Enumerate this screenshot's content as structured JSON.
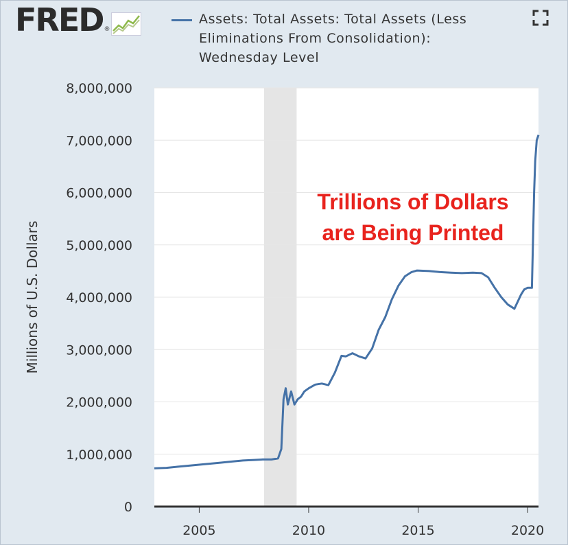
{
  "header": {
    "logo_text": "FRED",
    "logo_reg": "®",
    "series_title": "Assets: Total Assets: Total Assets (Less Eliminations From Consolidation): Wednesday Level",
    "series_color": "#4572a7"
  },
  "annotation": {
    "line1": "Trillions of Dollars",
    "line2": "are Being Printed",
    "color": "#e8231d"
  },
  "chart_data": {
    "type": "line",
    "title": "Assets: Total Assets: Total Assets (Less Eliminations From Consolidation): Wednesday Level",
    "ylabel": "Millions of U.S. Dollars",
    "xlabel": "",
    "xlim": [
      2002.95,
      2020.5
    ],
    "ylim": [
      0,
      8000000
    ],
    "yticks": [
      0,
      1000000,
      2000000,
      3000000,
      4000000,
      5000000,
      6000000,
      7000000,
      8000000
    ],
    "ytick_labels": [
      "0",
      "1,000,000",
      "2,000,000",
      "3,000,000",
      "4,000,000",
      "5,000,000",
      "6,000,000",
      "7,000,000",
      "8,000,000"
    ],
    "xticks": [
      2005,
      2010,
      2015,
      2020
    ],
    "xtick_labels": [
      "2005",
      "2010",
      "2015",
      "2020"
    ],
    "grid": true,
    "recession_shading": [
      [
        2007.96,
        2009.45
      ]
    ],
    "series": [
      {
        "name": "Assets: Total Assets: Total Assets (Less Eliminations From Consolidation): Wednesday Level",
        "color": "#4572a7",
        "x": [
          2002.95,
          2003.5,
          2004.0,
          2004.5,
          2005.0,
          2005.5,
          2006.0,
          2006.5,
          2007.0,
          2007.5,
          2007.9,
          2008.3,
          2008.6,
          2008.75,
          2008.85,
          2008.95,
          2009.05,
          2009.2,
          2009.35,
          2009.5,
          2009.65,
          2009.8,
          2010.0,
          2010.3,
          2010.6,
          2010.9,
          2011.2,
          2011.5,
          2011.7,
          2012.0,
          2012.3,
          2012.6,
          2012.9,
          2013.2,
          2013.5,
          2013.8,
          2014.1,
          2014.4,
          2014.7,
          2014.95,
          2015.5,
          2016.0,
          2016.5,
          2017.0,
          2017.5,
          2017.9,
          2018.2,
          2018.5,
          2018.8,
          2019.1,
          2019.4,
          2019.7,
          2019.85,
          2020.0,
          2020.2,
          2020.3,
          2020.35,
          2020.42,
          2020.5
        ],
        "values": [
          730000,
          740000,
          760000,
          780000,
          800000,
          820000,
          840000,
          860000,
          880000,
          890000,
          900000,
          900000,
          920000,
          1100000,
          2050000,
          2260000,
          1950000,
          2200000,
          1950000,
          2050000,
          2100000,
          2200000,
          2260000,
          2330000,
          2350000,
          2320000,
          2560000,
          2880000,
          2870000,
          2930000,
          2870000,
          2830000,
          3020000,
          3380000,
          3620000,
          3960000,
          4220000,
          4400000,
          4480000,
          4510000,
          4500000,
          4480000,
          4470000,
          4460000,
          4470000,
          4460000,
          4380000,
          4180000,
          4000000,
          3860000,
          3780000,
          4050000,
          4150000,
          4180000,
          4180000,
          6000000,
          6600000,
          7000000,
          7100000
        ]
      }
    ]
  }
}
